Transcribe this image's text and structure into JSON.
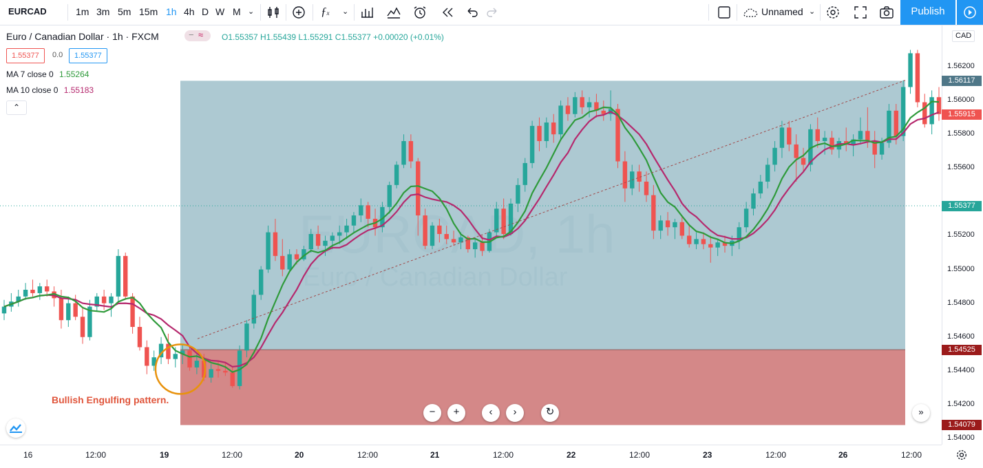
{
  "toolbar": {
    "symbol": "EURCAD",
    "intervals": [
      "1m",
      "3m",
      "5m",
      "15m",
      "1h",
      "4h",
      "D",
      "W",
      "M"
    ],
    "active_interval": "1h",
    "layout_name": "Unnamed",
    "publish_label": "Publish"
  },
  "legend": {
    "title": "Euro / Canadian Dollar · 1h · FXCM",
    "ohlc": "O1.55357  H1.55439  L1.55291  C1.55377  +0.00020 (+0.01%)",
    "bid": "1.55377",
    "spread": "0.0",
    "ask": "1.55377",
    "ma7_label": "MA 7 close 0",
    "ma7_value": "1.55264",
    "ma10_label": "MA 10 close 0",
    "ma10_value": "1.55183"
  },
  "watermark": {
    "symbol": "EURCAD, 1h",
    "name": "Euro / Canadian Dollar"
  },
  "annotation": "Bullish Engulfing pattern.",
  "price_axis": {
    "currency": "CAD",
    "ticks": [
      "1.56200",
      "1.56000",
      "1.55800",
      "1.55600",
      "1.55200",
      "1.55000",
      "1.54800",
      "1.54600",
      "1.54400",
      "1.54200",
      "1.54000"
    ],
    "tags": {
      "target": "1.56117",
      "last_close": "1.55915",
      "current": "1.55377",
      "entry": "1.54525",
      "stop": "1.54079"
    }
  },
  "time_axis": {
    "labels": [
      "16",
      "12:00",
      "19",
      "12:00",
      "20",
      "12:00",
      "21",
      "12:00",
      "22",
      "12:00",
      "23",
      "12:00",
      "26",
      "12:00"
    ]
  },
  "colors": {
    "up": "#26a69a",
    "down": "#ef5350",
    "ma7": "#2e9a3a",
    "ma10": "#b5286d",
    "profit_zone": "#9fbfca",
    "loss_zone": "#cf7b7b",
    "accent": "#2196f3"
  },
  "chart_data": {
    "type": "candlestick",
    "symbol": "EURCAD",
    "interval": "1h",
    "ylim": [
      1.5393,
      1.5643
    ],
    "x_labels": [
      "16",
      "12:00",
      "19",
      "12:00",
      "20",
      "12:00",
      "21",
      "12:00",
      "22",
      "12:00",
      "23",
      "12:00",
      "26",
      "12:00"
    ],
    "candles": [
      [
        1.5474,
        1.5482,
        1.547,
        1.5478
      ],
      [
        1.5478,
        1.5486,
        1.5475,
        1.5481
      ],
      [
        1.5481,
        1.5488,
        1.5478,
        1.5484
      ],
      [
        1.5484,
        1.5492,
        1.5482,
        1.5488
      ],
      [
        1.5488,
        1.5494,
        1.5484,
        1.5486
      ],
      [
        1.5486,
        1.5492,
        1.5482,
        1.549
      ],
      [
        1.549,
        1.5494,
        1.5484,
        1.5487
      ],
      [
        1.5487,
        1.549,
        1.5478,
        1.5483
      ],
      [
        1.5483,
        1.5488,
        1.5465,
        1.547
      ],
      [
        1.547,
        1.5484,
        1.5466,
        1.548
      ],
      [
        1.548,
        1.5485,
        1.547,
        1.5472
      ],
      [
        1.5472,
        1.5478,
        1.5456,
        1.546
      ],
      [
        1.546,
        1.5482,
        1.5458,
        1.5478
      ],
      [
        1.5478,
        1.5486,
        1.5475,
        1.5484
      ],
      [
        1.5484,
        1.5488,
        1.5476,
        1.548
      ],
      [
        1.548,
        1.5486,
        1.5472,
        1.5484
      ],
      [
        1.5484,
        1.5512,
        1.548,
        1.5508
      ],
      [
        1.5508,
        1.551,
        1.5482,
        1.5484
      ],
      [
        1.5484,
        1.5486,
        1.5462,
        1.5466
      ],
      [
        1.5466,
        1.5472,
        1.5452,
        1.5454
      ],
      [
        1.5454,
        1.5458,
        1.5438,
        1.5443
      ],
      [
        1.5443,
        1.5452,
        1.544,
        1.5448
      ],
      [
        1.5448,
        1.546,
        1.5444,
        1.5456
      ],
      [
        1.5456,
        1.5462,
        1.5444,
        1.5447
      ],
      [
        1.5447,
        1.5454,
        1.5442,
        1.545
      ],
      [
        1.545,
        1.5456,
        1.5444,
        1.5452
      ],
      [
        1.5452,
        1.5454,
        1.544,
        1.5442
      ],
      [
        1.5442,
        1.545,
        1.5438,
        1.5446
      ],
      [
        1.5446,
        1.545,
        1.5434,
        1.5436
      ],
      [
        1.5436,
        1.5444,
        1.5433,
        1.5441
      ],
      [
        1.5441,
        1.5446,
        1.5436,
        1.544
      ],
      [
        1.544,
        1.5445,
        1.5437,
        1.5439
      ],
      [
        1.5439,
        1.5442,
        1.543,
        1.5431
      ],
      [
        1.5431,
        1.5455,
        1.5429,
        1.5452
      ],
      [
        1.5452,
        1.547,
        1.5448,
        1.5468
      ],
      [
        1.5468,
        1.5488,
        1.5465,
        1.5485
      ],
      [
        1.5485,
        1.5502,
        1.5482,
        1.55
      ],
      [
        1.55,
        1.5526,
        1.5498,
        1.5522
      ],
      [
        1.5522,
        1.553,
        1.5505,
        1.5508
      ],
      [
        1.5508,
        1.5518,
        1.5496,
        1.55
      ],
      [
        1.55,
        1.5512,
        1.5498,
        1.5509
      ],
      [
        1.5509,
        1.5512,
        1.5503,
        1.5506
      ],
      [
        1.5506,
        1.5514,
        1.5505,
        1.5512
      ],
      [
        1.5512,
        1.5524,
        1.551,
        1.5521
      ],
      [
        1.5521,
        1.5526,
        1.5512,
        1.5514
      ],
      [
        1.5514,
        1.552,
        1.5508,
        1.5517
      ],
      [
        1.5517,
        1.5522,
        1.5512,
        1.552
      ],
      [
        1.552,
        1.5526,
        1.5515,
        1.5522
      ],
      [
        1.5522,
        1.553,
        1.5518,
        1.5526
      ],
      [
        1.5526,
        1.5534,
        1.5522,
        1.5532
      ],
      [
        1.5532,
        1.5542,
        1.5528,
        1.5538
      ],
      [
        1.5538,
        1.554,
        1.5525,
        1.553
      ],
      [
        1.553,
        1.5536,
        1.552,
        1.5525
      ],
      [
        1.5525,
        1.554,
        1.5522,
        1.5537
      ],
      [
        1.5537,
        1.5552,
        1.5533,
        1.555
      ],
      [
        1.555,
        1.5564,
        1.5548,
        1.5562
      ],
      [
        1.5562,
        1.558,
        1.556,
        1.5576
      ],
      [
        1.5576,
        1.558,
        1.556,
        1.5564
      ],
      [
        1.5564,
        1.5566,
        1.552,
        1.5532
      ],
      [
        1.5532,
        1.5536,
        1.5512,
        1.5514
      ],
      [
        1.5514,
        1.5528,
        1.5512,
        1.5526
      ],
      [
        1.5526,
        1.553,
        1.5516,
        1.5521
      ],
      [
        1.5521,
        1.5526,
        1.5515,
        1.5518
      ],
      [
        1.5518,
        1.5523,
        1.5514,
        1.5516
      ],
      [
        1.5516,
        1.5522,
        1.5512,
        1.5519
      ],
      [
        1.5519,
        1.552,
        1.551,
        1.5512
      ],
      [
        1.5512,
        1.5519,
        1.5507,
        1.5516
      ],
      [
        1.5516,
        1.552,
        1.5508,
        1.5511
      ],
      [
        1.5511,
        1.5524,
        1.551,
        1.5522
      ],
      [
        1.5522,
        1.554,
        1.552,
        1.5536
      ],
      [
        1.5536,
        1.5542,
        1.5518,
        1.5521
      ],
      [
        1.5521,
        1.5542,
        1.552,
        1.5539
      ],
      [
        1.5539,
        1.5554,
        1.5534,
        1.555
      ],
      [
        1.555,
        1.5566,
        1.5546,
        1.5563
      ],
      [
        1.5563,
        1.5588,
        1.556,
        1.5585
      ],
      [
        1.5585,
        1.559,
        1.557,
        1.5576
      ],
      [
        1.5576,
        1.559,
        1.5572,
        1.5587
      ],
      [
        1.5587,
        1.5592,
        1.5575,
        1.558
      ],
      [
        1.558,
        1.56,
        1.5577,
        1.5597
      ],
      [
        1.5597,
        1.5602,
        1.5588,
        1.5592
      ],
      [
        1.5592,
        1.5605,
        1.559,
        1.5602
      ],
      [
        1.5602,
        1.5606,
        1.5592,
        1.5596
      ],
      [
        1.5596,
        1.5602,
        1.559,
        1.5599
      ],
      [
        1.5599,
        1.5604,
        1.559,
        1.5594
      ],
      [
        1.5594,
        1.56,
        1.5588,
        1.5592
      ],
      [
        1.5592,
        1.5606,
        1.5588,
        1.5595
      ],
      [
        1.5595,
        1.5598,
        1.556,
        1.5564
      ],
      [
        1.5564,
        1.557,
        1.554,
        1.5548
      ],
      [
        1.5548,
        1.5562,
        1.5544,
        1.5558
      ],
      [
        1.5558,
        1.5562,
        1.5546,
        1.5552
      ],
      [
        1.5552,
        1.5558,
        1.554,
        1.5544
      ],
      [
        1.5544,
        1.555,
        1.5518,
        1.5523
      ],
      [
        1.5523,
        1.5532,
        1.5518,
        1.5529
      ],
      [
        1.5529,
        1.5534,
        1.552,
        1.5525
      ],
      [
        1.5525,
        1.553,
        1.5518,
        1.5528
      ],
      [
        1.5528,
        1.5532,
        1.5518,
        1.552
      ],
      [
        1.552,
        1.5526,
        1.5513,
        1.5515
      ],
      [
        1.5515,
        1.5522,
        1.5512,
        1.5518
      ],
      [
        1.5518,
        1.5522,
        1.5512,
        1.5515
      ],
      [
        1.5515,
        1.552,
        1.5504,
        1.5513
      ],
      [
        1.5513,
        1.5518,
        1.5508,
        1.5516
      ],
      [
        1.5516,
        1.552,
        1.551,
        1.5514
      ],
      [
        1.5514,
        1.552,
        1.5508,
        1.5517
      ],
      [
        1.5517,
        1.5528,
        1.5512,
        1.5525
      ],
      [
        1.5525,
        1.554,
        1.5522,
        1.5536
      ],
      [
        1.5536,
        1.5548,
        1.5532,
        1.5545
      ],
      [
        1.5545,
        1.5556,
        1.5542,
        1.5552
      ],
      [
        1.5552,
        1.5566,
        1.5548,
        1.5562
      ],
      [
        1.5562,
        1.5576,
        1.5558,
        1.5572
      ],
      [
        1.5572,
        1.5588,
        1.5566,
        1.5584
      ],
      [
        1.5584,
        1.5588,
        1.557,
        1.5574
      ],
      [
        1.5574,
        1.558,
        1.5552,
        1.5566
      ],
      [
        1.5566,
        1.5572,
        1.5558,
        1.5562
      ],
      [
        1.5562,
        1.5586,
        1.5558,
        1.5583
      ],
      [
        1.5583,
        1.559,
        1.5572,
        1.5576
      ],
      [
        1.5576,
        1.5582,
        1.5568,
        1.5578
      ],
      [
        1.5578,
        1.5582,
        1.5568,
        1.5571
      ],
      [
        1.5571,
        1.5578,
        1.5566,
        1.5576
      ],
      [
        1.5576,
        1.5584,
        1.557,
        1.5574
      ],
      [
        1.5574,
        1.558,
        1.5567,
        1.5577
      ],
      [
        1.5577,
        1.559,
        1.5574,
        1.5582
      ],
      [
        1.5582,
        1.5596,
        1.5572,
        1.5576
      ],
      [
        1.5576,
        1.5582,
        1.556,
        1.5568
      ],
      [
        1.5568,
        1.5578,
        1.5565,
        1.5575
      ],
      [
        1.5575,
        1.5598,
        1.5572,
        1.5594
      ],
      [
        1.5594,
        1.5598,
        1.5574,
        1.5579
      ],
      [
        1.5579,
        1.5612,
        1.5576,
        1.5608
      ],
      [
        1.5608,
        1.563,
        1.5604,
        1.5628
      ],
      [
        1.5628,
        1.563,
        1.5596,
        1.5599
      ],
      [
        1.5599,
        1.5604,
        1.5584,
        1.5586
      ],
      [
        1.5586,
        1.5606,
        1.558,
        1.5602
      ],
      [
        1.5602,
        1.5608,
        1.5588,
        1.5592
      ]
    ],
    "series": [
      {
        "name": "MA 7 close 0",
        "last": 1.55264
      },
      {
        "name": "MA 10 close 0",
        "last": 1.55183
      }
    ],
    "long_position": {
      "entry": 1.54525,
      "target": 1.56117,
      "stop": 1.54079
    },
    "current_price": 1.55377
  }
}
